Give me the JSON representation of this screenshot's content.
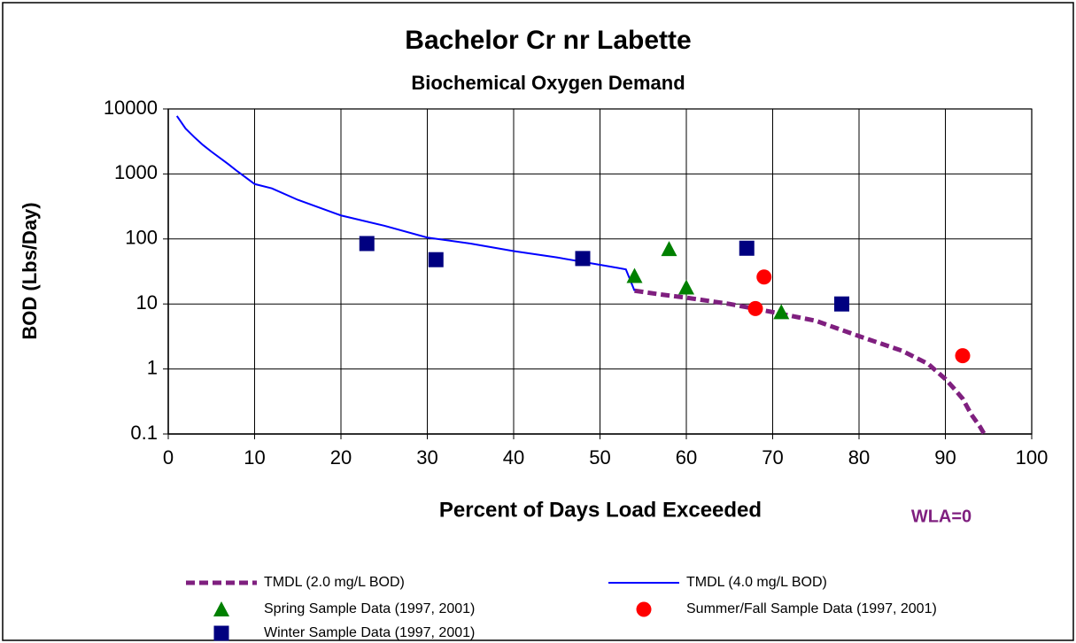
{
  "chart_data": {
    "type": "line",
    "title": "Bachelor Cr nr Labette",
    "subtitle": "Biochemical Oxygen Demand",
    "x_label": "Percent of Days Load Exceeded",
    "y_label": "BOD (Lbs/Day)",
    "annotations": [
      "LA",
      "WLA=0"
    ],
    "xlim": [
      0,
      100
    ],
    "xticks": [
      0,
      10,
      20,
      30,
      40,
      50,
      60,
      70,
      80,
      90,
      100
    ],
    "ylim": [
      0.1,
      10000
    ],
    "yticks": [
      10000,
      1000,
      100,
      10,
      1,
      0.1
    ],
    "log_y": true,
    "grid": true,
    "legend": "bottom",
    "series": [
      {
        "name": "TMDL (2.0 mg/L BOD)",
        "color": "#7f1f7f",
        "style": "dashed",
        "x": [
          54,
          57,
          60,
          65,
          70,
          75,
          80,
          85,
          88,
          90,
          91,
          92,
          93,
          94,
          94.5
        ],
        "values": [
          16,
          14,
          12.5,
          10,
          7.5,
          5.5,
          3.2,
          1.9,
          1.2,
          0.7,
          0.5,
          0.35,
          0.2,
          0.13,
          0.1
        ]
      },
      {
        "name": "TMDL (4.0 mg/L BOD)",
        "color": "#0000ff",
        "style": "solid",
        "x": [
          1,
          2,
          3,
          4,
          5,
          7,
          8,
          10,
          12,
          15,
          20,
          25,
          30,
          35,
          40,
          45,
          50,
          52,
          53,
          54
        ],
        "values": [
          7800,
          5000,
          3700,
          2800,
          2200,
          1400,
          1100,
          700,
          600,
          400,
          230,
          160,
          105,
          85,
          65,
          52,
          40,
          36,
          34,
          16
        ]
      },
      {
        "name": "Spring Sample Data (1997, 2001)",
        "color": "#008000",
        "marker": "triangle",
        "x": [
          54,
          58,
          60,
          71
        ],
        "values": [
          27,
          70,
          18,
          7.5
        ]
      },
      {
        "name": "Summer/Fall Sample Data (1997, 2001)",
        "color": "#ff0000",
        "marker": "circle",
        "x": [
          68,
          69,
          92
        ],
        "values": [
          8.5,
          26,
          1.6
        ]
      },
      {
        "name": "Winter Sample Data (1997, 2001)",
        "color": "#000080",
        "marker": "square",
        "x": [
          23,
          31,
          48,
          67,
          78
        ],
        "values": [
          85,
          48,
          50,
          72,
          10
        ]
      }
    ]
  }
}
